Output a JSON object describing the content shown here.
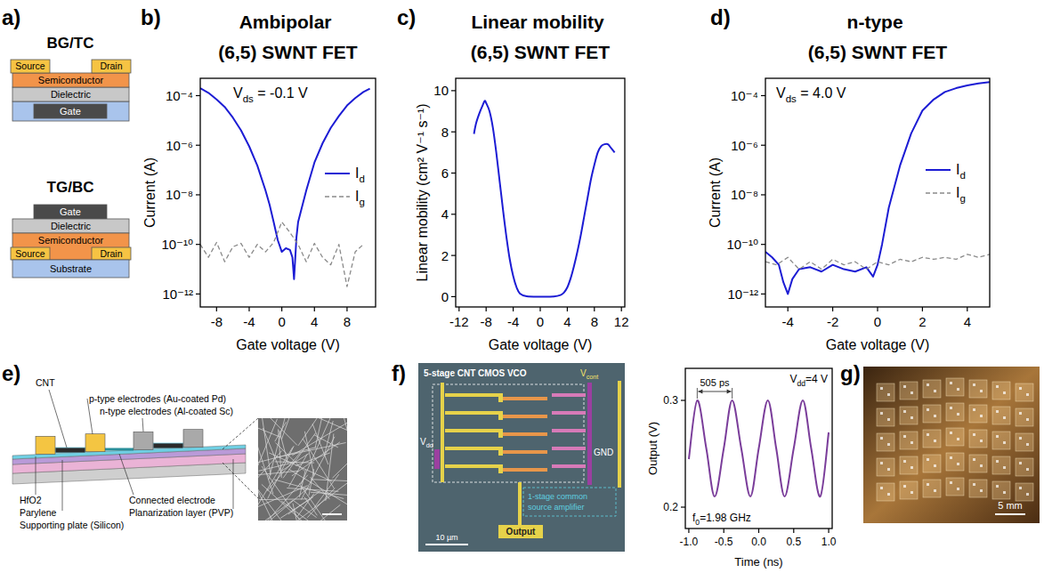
{
  "panel_labels": [
    "a)",
    "b)",
    "c)",
    "d)",
    "e)",
    "f)",
    "g)"
  ],
  "schematic_a": {
    "bg_tc": {
      "title": "BG/TC",
      "source": "Source",
      "drain": "Drain",
      "semiconductor": "Semiconductor",
      "dielectric": "Dielectric",
      "gate": "Gate"
    },
    "tg_bc": {
      "title": "TG/BC",
      "gate": "Gate",
      "dielectric": "Dielectric",
      "semiconductor": "Semiconductor",
      "source": "Source",
      "drain": "Drain",
      "substrate": "Substrate"
    }
  },
  "chart_data": [
    {
      "type": "line",
      "title": "Ambipolar (6,5) SWNT FET",
      "x_label": "Gate voltage (V)",
      "y_label": "Current (A)",
      "log": "y",
      "xlim": [
        -10,
        11.5
      ],
      "ylim": [
        3e-13,
        0.0005
      ],
      "xticks": [
        -8,
        -4,
        0,
        4,
        8
      ],
      "yticks": [
        {
          "value": 0.0001,
          "label": "10⁻⁴"
        },
        {
          "value": 1e-06,
          "label": "10⁻⁶"
        },
        {
          "value": 1e-08,
          "label": "10⁻⁸"
        },
        {
          "value": 1e-10,
          "label": "10⁻¹⁰"
        },
        {
          "value": 1e-12,
          "label": "10⁻¹²"
        }
      ],
      "annotations": [
        "Vds = -0.1 V"
      ],
      "legend": "right",
      "series": [
        {
          "name": "Id",
          "color": "#1c1cd4",
          "line_style": "solid",
          "x": [
            -10,
            -9,
            -8,
            -7,
            -6,
            -5,
            -4,
            -3,
            -2,
            -1.5,
            -1,
            -0.5,
            0,
            0.5,
            1,
            1.3,
            1.5,
            1.8,
            2,
            3,
            4,
            5,
            6,
            7,
            8,
            9,
            10,
            10.8
          ],
          "values": [
            0.0002,
            0.00013,
            7e-05,
            3.5e-05,
            1.3e-05,
            4e-06,
            9e-07,
            1.5e-07,
            1.5e-08,
            4e-09,
            8e-10,
            1.5e-10,
            5e-11,
            7e-11,
            6e-11,
            3e-11,
            4e-12,
            2e-10,
            8e-10,
            1.5e-08,
            2e-07,
            1.2e-06,
            5e-06,
            1.5e-05,
            4e-05,
            8e-05,
            0.00014,
            0.00019
          ]
        },
        {
          "name": "Ig",
          "color": "#8a8a8a",
          "line_style": "dashed",
          "x": [
            -10,
            -9,
            -8,
            -7,
            -6,
            -5,
            -4,
            -3,
            -2,
            -1,
            0,
            1,
            2,
            3,
            4,
            5,
            6,
            7,
            8,
            9,
            10
          ],
          "values": [
            1e-10,
            3e-11,
            1.2e-10,
            2e-11,
            8e-11,
            1.1e-10,
            3e-11,
            1e-10,
            5e-11,
            1.2e-10,
            8e-10,
            3e-10,
            1e-10,
            2e-11,
            1.1e-10,
            3e-11,
            1.5e-11,
            1e-10,
            2e-12,
            5e-11,
            1e-10
          ]
        }
      ]
    },
    {
      "type": "line",
      "title": "Linear mobility (6,5) SWNT FET",
      "x_label": "Gate voltage (V)",
      "y_label": "Linear mobility (cm² V⁻¹ s⁻¹)",
      "xlim": [
        -12.5,
        12.5
      ],
      "ylim": [
        -0.5,
        10.6
      ],
      "xticks": [
        -12,
        -8,
        -4,
        0,
        4,
        8,
        12
      ],
      "yticks": [
        0,
        2,
        4,
        6,
        8,
        10
      ],
      "series": [
        {
          "color": "#1c1cd4",
          "line_style": "solid",
          "x": [
            -9.8,
            -9.5,
            -9,
            -8.5,
            -8.2,
            -8,
            -7.5,
            -7,
            -6.5,
            -6,
            -5.5,
            -5,
            -4.5,
            -4,
            -3.5,
            -3,
            -2,
            0,
            2,
            3,
            3.5,
            4,
            4.5,
            5,
            5.5,
            6,
            6.5,
            7,
            7.5,
            8,
            8.5,
            9,
            9.5,
            10,
            10.5,
            11
          ],
          "values": [
            7.9,
            8.4,
            8.9,
            9.3,
            9.5,
            9.4,
            9.0,
            8.2,
            7.0,
            5.6,
            4.2,
            2.9,
            1.8,
            1.0,
            0.45,
            0.15,
            0.02,
            0,
            0.01,
            0.08,
            0.2,
            0.45,
            0.9,
            1.5,
            2.2,
            3.0,
            3.9,
            4.8,
            5.7,
            6.4,
            7.0,
            7.3,
            7.4,
            7.4,
            7.2,
            7.0
          ]
        }
      ]
    },
    {
      "type": "line",
      "title": "n-type (6,5) SWNT FET",
      "x_label": "Gate voltage (V)",
      "y_label": "Current (A)",
      "log": "y",
      "xlim": [
        -5,
        5
      ],
      "ylim": [
        3e-13,
        0.0005
      ],
      "xticks": [
        -4,
        -2,
        0,
        2,
        4
      ],
      "yticks": [
        {
          "value": 0.0001,
          "label": "10⁻⁴"
        },
        {
          "value": 1e-06,
          "label": "10⁻⁶"
        },
        {
          "value": 1e-08,
          "label": "10⁻⁸"
        },
        {
          "value": 1e-10,
          "label": "10⁻¹⁰"
        },
        {
          "value": 1e-12,
          "label": "10⁻¹²"
        }
      ],
      "annotations": [
        "Vds = 4.0 V"
      ],
      "legend": "right",
      "series": [
        {
          "name": "Id",
          "color": "#1c1cd4",
          "line_style": "solid",
          "x": [
            -5,
            -4.7,
            -4.4,
            -4.2,
            -4,
            -3.8,
            -3.5,
            -3,
            -2.5,
            -2,
            -1.5,
            -1,
            -0.5,
            -0.2,
            0,
            0.2,
            0.5,
            1,
            1.5,
            2,
            2.5,
            3,
            3.5,
            4,
            4.5,
            5
          ],
          "values": [
            5e-11,
            3e-11,
            1.5e-11,
            3e-12,
            1e-12,
            4e-12,
            1e-11,
            1.2e-11,
            8e-12,
            1.5e-11,
            1e-11,
            8e-12,
            1.2e-11,
            5e-12,
            1.5e-11,
            1e-10,
            3e-09,
            1.5e-07,
            3e-06,
            2.5e-05,
            7e-05,
            0.00014,
            0.0002,
            0.00026,
            0.00031,
            0.00035
          ]
        },
        {
          "name": "Ig",
          "color": "#8a8a8a",
          "line_style": "dashed",
          "x": [
            -5,
            -4.5,
            -4,
            -3.5,
            -3,
            -2.5,
            -2,
            -1.5,
            -1,
            -0.5,
            0,
            0.5,
            1,
            1.5,
            2,
            2.5,
            3,
            3.5,
            4,
            4.5,
            5
          ],
          "values": [
            2e-11,
            1.5e-11,
            3e-11,
            1e-11,
            2e-11,
            1e-11,
            2.5e-11,
            1.5e-11,
            2e-11,
            1e-11,
            2e-11,
            1.5e-11,
            2.5e-11,
            2e-11,
            3e-11,
            2.5e-11,
            3e-11,
            2.5e-11,
            4e-11,
            3e-11,
            4e-11
          ]
        }
      ]
    },
    {
      "type": "line",
      "x_label": "Time (ns)",
      "y_label": "Output (V)",
      "xlim": [
        -1.05,
        1.05
      ],
      "ylim": [
        0.18,
        0.33
      ],
      "xticks": [
        {
          "value": -1,
          "label": "-1.0"
        },
        -0.5,
        {
          "value": 0,
          "label": "0.0"
        },
        0.5,
        {
          "value": 1,
          "label": "1.0"
        }
      ],
      "yticks": [
        0.2,
        0.3
      ],
      "annotations": [
        "Vdd=4 V",
        "505 ps",
        "f0=1.98 GHz"
      ],
      "series": [
        {
          "color": "#7a3d9a",
          "line_style": "solid",
          "x": [
            -1,
            -0.88,
            -0.75,
            -0.63,
            -0.5,
            -0.38,
            -0.25,
            -0.12,
            0,
            0.13,
            0.25,
            0.37,
            0.5,
            0.63,
            0.75,
            0.88,
            1
          ],
          "values": [
            0.245,
            0.3,
            0.255,
            0.21,
            0.255,
            0.3,
            0.255,
            0.21,
            0.255,
            0.3,
            0.255,
            0.21,
            0.255,
            0.3,
            0.255,
            0.21,
            0.27
          ]
        }
      ]
    }
  ],
  "schematic_e": {
    "cnt": "CNT",
    "p_electrodes": "p-type electrodes (Au-coated Pd)",
    "n_electrodes": "n-type electrodes (Al-coated Sc)",
    "hfo2": "HfO2",
    "parylene": "Parylene",
    "plate": "Supporting plate (Silicon)",
    "connected": "Connected electrode",
    "pvp": "Planarization layer (PVP)"
  },
  "chip_f": {
    "title": "5-stage CNT CMOS VCO",
    "vcont": "Vcont",
    "vdd": "Vdd",
    "gnd": "GND",
    "output": "Output",
    "amplifier": "1-stage common source amplifier",
    "scale": "10 µm"
  },
  "photo_g": {
    "scale": "5 mm"
  }
}
